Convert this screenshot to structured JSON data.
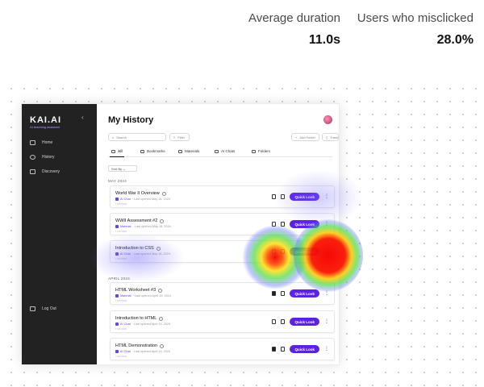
{
  "stats": [
    {
      "label": "Average duration",
      "value": "11.0s"
    },
    {
      "label": "Users who misclicked",
      "value": "28.0%"
    }
  ],
  "app": {
    "brand": "KAI.AI",
    "brand_sub": "AI teaching assistant",
    "nav": [
      {
        "label": "Home",
        "icon": "home-icon"
      },
      {
        "label": "History",
        "icon": "history-icon"
      },
      {
        "label": "Discovery",
        "icon": "discovery-icon"
      }
    ],
    "logout": "Log Out",
    "title": "My History",
    "search_placeholder": "Search",
    "filter": "Filter",
    "add_folder": "Add Folder",
    "trash": "Trash",
    "tabs": [
      "All",
      "Bookmarks",
      "Materials",
      "AI Chats",
      "Folders"
    ],
    "sort": "Sort By",
    "months": [
      "MAY 2024",
      "APRIL 2024"
    ],
    "quick_look": "Quick Look",
    "cards": [
      {
        "title": "World War II Overview",
        "type": "AI Chat",
        "meta": "· Last opened May 18, 2024",
        "sub": "• not bkml"
      },
      {
        "title": "WWII Assessment #2",
        "type": "Material",
        "meta": "· Last opened May 18, 2024",
        "sub": "• not bkml"
      },
      {
        "title": "Introduction to CSS",
        "type": "AI Chat",
        "meta": "· Last opened May 18, 2024",
        "sub": "• not bkml"
      },
      {
        "title": "HTML Worksheet #3",
        "type": "Material",
        "meta": "· Last opened April 19, 2024",
        "sub": "• not bkml"
      },
      {
        "title": "Introduction to HTML",
        "type": "AI Chat",
        "meta": "· Last opened April 19, 2024",
        "sub": "• not bkml"
      },
      {
        "title": "HTML Demonstration",
        "type": "AI Chat",
        "meta": "· Last opened April 13, 2024",
        "sub": "• not bkml"
      }
    ]
  },
  "colors": {
    "accent": "#5b21e6",
    "sidebar": "#222222"
  }
}
